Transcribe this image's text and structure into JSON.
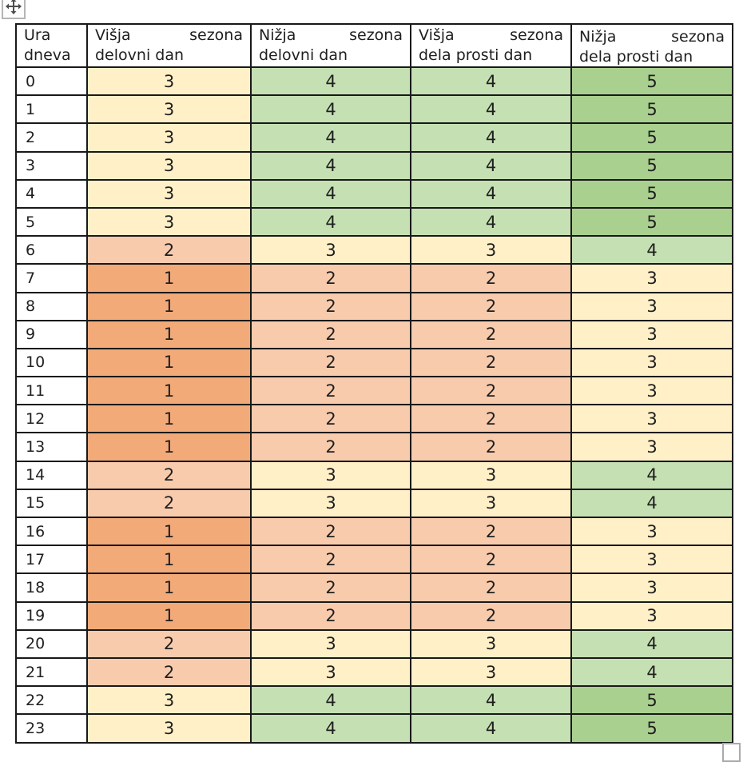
{
  "table": {
    "headers": [
      {
        "w1": "Ura",
        "w2": "",
        "line2": "dneva"
      },
      {
        "w1": "Višja",
        "w2": "sezona",
        "line2": "delovni dan"
      },
      {
        "w1": "Nižja",
        "w2": "sezona",
        "line2": "delovni dan"
      },
      {
        "w1": "Višja",
        "w2": "sezona",
        "line2": "dela prosti dan"
      },
      {
        "w1": "Nižja",
        "w2": "sezona",
        "line2": "dela prosti dan"
      }
    ],
    "rows": [
      {
        "hour": "0",
        "values": [
          3,
          4,
          4,
          5
        ]
      },
      {
        "hour": "1",
        "values": [
          3,
          4,
          4,
          5
        ]
      },
      {
        "hour": "2",
        "values": [
          3,
          4,
          4,
          5
        ]
      },
      {
        "hour": "3",
        "values": [
          3,
          4,
          4,
          5
        ]
      },
      {
        "hour": "4",
        "values": [
          3,
          4,
          4,
          5
        ]
      },
      {
        "hour": "5",
        "values": [
          3,
          4,
          4,
          5
        ]
      },
      {
        "hour": "6",
        "values": [
          2,
          3,
          3,
          4
        ]
      },
      {
        "hour": "7",
        "values": [
          1,
          2,
          2,
          3
        ]
      },
      {
        "hour": "8",
        "values": [
          1,
          2,
          2,
          3
        ]
      },
      {
        "hour": "9",
        "values": [
          1,
          2,
          2,
          3
        ]
      },
      {
        "hour": "10",
        "values": [
          1,
          2,
          2,
          3
        ]
      },
      {
        "hour": "11",
        "values": [
          1,
          2,
          2,
          3
        ]
      },
      {
        "hour": "12",
        "values": [
          1,
          2,
          2,
          3
        ]
      },
      {
        "hour": "13",
        "values": [
          1,
          2,
          2,
          3
        ]
      },
      {
        "hour": "14",
        "values": [
          2,
          3,
          3,
          4
        ]
      },
      {
        "hour": "15",
        "values": [
          2,
          3,
          3,
          4
        ]
      },
      {
        "hour": "16",
        "values": [
          1,
          2,
          2,
          3
        ]
      },
      {
        "hour": "17",
        "values": [
          1,
          2,
          2,
          3
        ]
      },
      {
        "hour": "18",
        "values": [
          1,
          2,
          2,
          3
        ]
      },
      {
        "hour": "19",
        "values": [
          1,
          2,
          2,
          3
        ]
      },
      {
        "hour": "20",
        "values": [
          2,
          3,
          3,
          4
        ]
      },
      {
        "hour": "21",
        "values": [
          2,
          3,
          3,
          4
        ]
      },
      {
        "hour": "22",
        "values": [
          3,
          4,
          4,
          5
        ]
      },
      {
        "hour": "23",
        "values": [
          3,
          4,
          4,
          5
        ]
      }
    ],
    "value_colors": {
      "1": "#F2AA79",
      "2": "#F8CBAD",
      "3": "#FFF0C8",
      "4": "#C5E0B3",
      "5": "#A9D08E"
    },
    "border_color": "#191919",
    "text_color": "#1f1f1f"
  },
  "icons": {
    "move_handle": "table-move-icon",
    "resize_handle": "table-resize-icon"
  }
}
